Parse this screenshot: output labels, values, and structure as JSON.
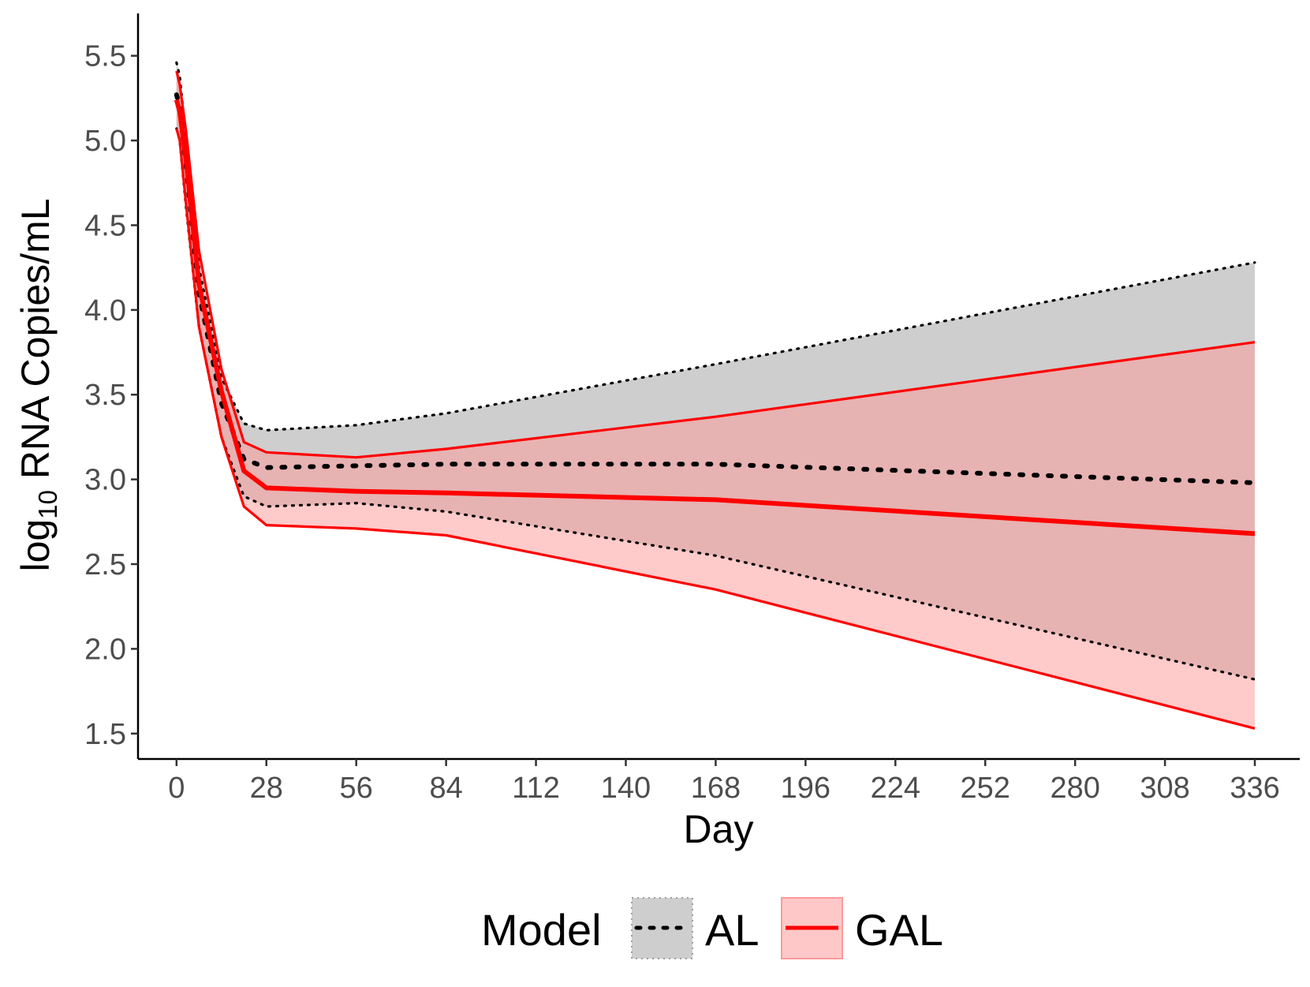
{
  "chart_data": {
    "type": "line",
    "title": "",
    "xlabel": "Day",
    "ylabel_parts": {
      "prefix": "log",
      "subscript": "10",
      "suffix": " RNA Copies/mL"
    },
    "xlim": [
      -12,
      350
    ],
    "ylim": [
      1.35,
      5.75
    ],
    "x_ticks": [
      0,
      28,
      56,
      84,
      112,
      140,
      168,
      196,
      224,
      252,
      280,
      308,
      336
    ],
    "x_tick_labels": [
      "0",
      "28",
      "56",
      "84",
      "112",
      "140",
      "168",
      "196",
      "224",
      "252",
      "280",
      "308",
      "336"
    ],
    "y_ticks": [
      1.5,
      2.0,
      2.5,
      3.0,
      3.5,
      4.0,
      4.5,
      5.0,
      5.5
    ],
    "y_tick_labels": [
      "1.5",
      "2.0",
      "2.5",
      "3.0",
      "3.5",
      "4.0",
      "4.5",
      "5.0",
      "5.5"
    ],
    "grid": false,
    "legend": {
      "position": "bottom",
      "title": "Model",
      "entries": [
        "AL",
        "GAL"
      ]
    },
    "series": [
      {
        "name": "AL",
        "line_style": "dotted",
        "line_color": "#000000",
        "fill_color": "#bdbdbd",
        "x": [
          0,
          1,
          3,
          7,
          14,
          21,
          28,
          56,
          84,
          168,
          336
        ],
        "median": [
          5.27,
          5.2,
          4.85,
          4.1,
          3.45,
          3.12,
          3.07,
          3.08,
          3.09,
          3.09,
          2.98
        ],
        "upper": [
          5.46,
          5.38,
          5.0,
          4.25,
          3.6,
          3.33,
          3.29,
          3.32,
          3.39,
          3.68,
          4.28
        ],
        "lower": [
          5.07,
          5.0,
          4.6,
          3.9,
          3.25,
          2.9,
          2.84,
          2.86,
          2.81,
          2.55,
          1.82
        ]
      },
      {
        "name": "GAL",
        "line_style": "solid",
        "line_color": "#ff0000",
        "fill_color": "#ff9a9a",
        "x": [
          0,
          1,
          3,
          7,
          14,
          21,
          28,
          56,
          84,
          168,
          336
        ],
        "median": [
          5.24,
          5.17,
          4.88,
          4.15,
          3.52,
          3.05,
          2.95,
          2.93,
          2.92,
          2.88,
          2.68
        ],
        "upper": [
          5.41,
          5.33,
          5.05,
          4.35,
          3.65,
          3.22,
          3.16,
          3.13,
          3.18,
          3.37,
          3.81
        ],
        "lower": [
          5.07,
          5.0,
          4.62,
          3.9,
          3.25,
          2.84,
          2.73,
          2.71,
          2.67,
          2.35,
          1.53
        ]
      }
    ]
  }
}
